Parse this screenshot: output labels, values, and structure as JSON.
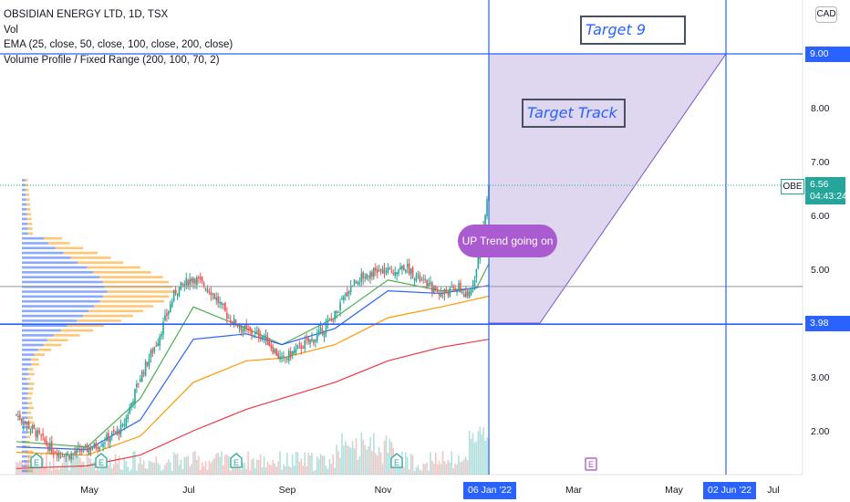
{
  "legend": {
    "title": "OBSIDIAN ENERGY LTD, 1D, TSX",
    "vol": "Vol",
    "ema": "EMA (25, close, 50, close, 100, close, 200, close)",
    "vp": "Volume Profile / Fixed Range (200, 100, 70, 2)"
  },
  "currency": "CAD",
  "annotations": {
    "target9": "Target 9",
    "target_track": "Target Track",
    "uptrend": "UP Trend going on"
  },
  "price_tags": {
    "target": "9.00",
    "support": "3.98",
    "symbol": "OBE",
    "last": "6.56",
    "countdown": "04:43:24"
  },
  "date_tags": {
    "start": "06 Jan '22",
    "end": "02 Jun '22"
  },
  "colors": {
    "up": "#26a69a",
    "down": "#ef5350",
    "ema25": "#4caf50",
    "ema50": "#2962ff",
    "ema100": "#ff9800",
    "ema200": "#f23645",
    "hline": "#2962ff",
    "fill": "#d1c4e9",
    "earnings": "#26a69a",
    "earnings_future": "#ab47bc"
  },
  "chart_data": {
    "type": "candlestick",
    "y_axis": {
      "ticks": [
        2.0,
        3.0,
        4.0,
        5.0,
        6.0,
        7.0,
        8.0,
        9.0
      ],
      "scale": "linear"
    },
    "x_axis": {
      "ticks": [
        "May",
        "Jul",
        "Sep",
        "Nov",
        "Mar",
        "May",
        "Jul"
      ]
    },
    "price_path": [
      [
        0,
        2.3
      ],
      [
        10,
        2.0
      ],
      [
        20,
        1.65
      ],
      [
        30,
        1.55
      ],
      [
        45,
        1.72
      ],
      [
        60,
        2.05
      ],
      [
        70,
        3.0
      ],
      [
        80,
        3.7
      ],
      [
        90,
        4.6
      ],
      [
        100,
        4.85
      ],
      [
        110,
        4.6
      ],
      [
        120,
        4.1
      ],
      [
        130,
        3.85
      ],
      [
        140,
        3.75
      ],
      [
        150,
        3.3
      ],
      [
        160,
        3.55
      ],
      [
        170,
        3.75
      ],
      [
        180,
        4.15
      ],
      [
        190,
        4.75
      ],
      [
        200,
        4.95
      ],
      [
        210,
        4.95
      ],
      [
        220,
        5.05
      ],
      [
        230,
        4.75
      ],
      [
        240,
        4.55
      ],
      [
        250,
        4.65
      ],
      [
        255,
        4.45
      ],
      [
        260,
        5.0
      ],
      [
        265,
        6.0
      ],
      [
        267,
        6.56
      ]
    ],
    "ema": [
      {
        "period": 25,
        "points": [
          [
            0,
            1.8
          ],
          [
            40,
            1.7
          ],
          [
            70,
            2.6
          ],
          [
            100,
            4.3
          ],
          [
            130,
            3.9
          ],
          [
            150,
            3.6
          ],
          [
            180,
            4.1
          ],
          [
            210,
            4.8
          ],
          [
            240,
            4.6
          ],
          [
            260,
            4.65
          ],
          [
            267,
            5.1
          ]
        ]
      },
      {
        "period": 50,
        "points": [
          [
            0,
            1.7
          ],
          [
            40,
            1.65
          ],
          [
            70,
            2.2
          ],
          [
            100,
            3.7
          ],
          [
            130,
            3.8
          ],
          [
            150,
            3.6
          ],
          [
            180,
            3.9
          ],
          [
            210,
            4.6
          ],
          [
            240,
            4.55
          ],
          [
            267,
            4.7
          ]
        ]
      },
      {
        "period": 100,
        "points": [
          [
            0,
            1.6
          ],
          [
            40,
            1.55
          ],
          [
            70,
            1.9
          ],
          [
            100,
            2.9
          ],
          [
            130,
            3.3
          ],
          [
            150,
            3.35
          ],
          [
            180,
            3.6
          ],
          [
            210,
            4.1
          ],
          [
            240,
            4.3
          ],
          [
            267,
            4.5
          ]
        ]
      },
      {
        "period": 200,
        "points": [
          [
            0,
            1.3
          ],
          [
            40,
            1.35
          ],
          [
            70,
            1.55
          ],
          [
            100,
            2.0
          ],
          [
            130,
            2.4
          ],
          [
            150,
            2.6
          ],
          [
            180,
            2.9
          ],
          [
            210,
            3.3
          ],
          [
            240,
            3.55
          ],
          [
            267,
            3.7
          ]
        ]
      }
    ],
    "hlines": [
      9.0,
      3.98,
      4.68
    ],
    "last_price": 6.56,
    "volume_profile_ticks": [
      1.2,
      6.7
    ],
    "poc": 4.68
  }
}
